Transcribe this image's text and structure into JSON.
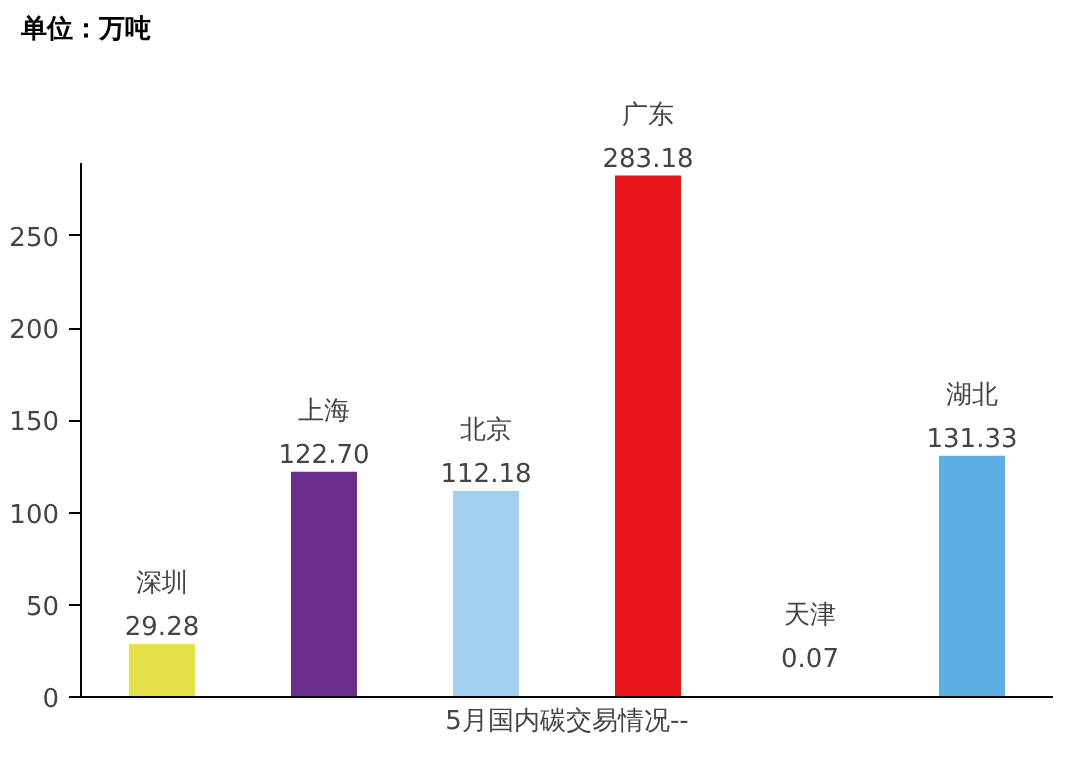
{
  "chart_data": {
    "type": "bar",
    "ylabel": "单位：万吨",
    "xlabel": "5月国内碳交易情况--",
    "categories": [
      "深圳",
      "上海",
      "北京",
      "广东",
      "天津",
      "湖北"
    ],
    "values": [
      29.28,
      122.7,
      112.18,
      283.18,
      0.07,
      131.33
    ],
    "value_labels": [
      "29.28",
      "122.70",
      "112.18",
      "283.18",
      "0.07",
      "131.33"
    ],
    "colors": [
      "#e4e04a",
      "#6a2f8c",
      "#a3cfee",
      "#e8161b",
      "#9bc4e8",
      "#5aaee2"
    ],
    "ylim": [
      0,
      290
    ],
    "yticks": [
      0,
      50,
      100,
      150,
      200,
      250
    ],
    "grid": false
  }
}
